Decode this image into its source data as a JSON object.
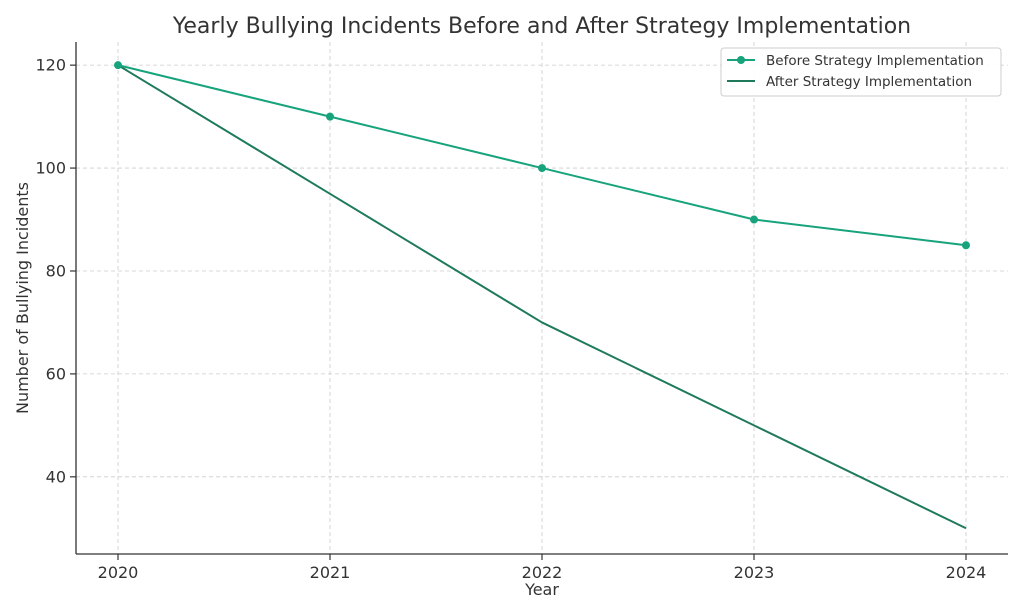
{
  "chart_data": {
    "type": "line",
    "title": "Yearly Bullying Incidents Before and After Strategy Implementation",
    "xlabel": "Year",
    "ylabel": "Number of Bullying Incidents",
    "x": [
      "2020",
      "2021",
      "2022",
      "2023",
      "2024"
    ],
    "yticks": [
      40,
      60,
      80,
      100,
      120
    ],
    "ylim": [
      25,
      124.5
    ],
    "grid": true,
    "legend_position": "top-right",
    "series": [
      {
        "name": "Before Strategy Implementation",
        "values": [
          120,
          110,
          100,
          90,
          85
        ],
        "color": "#17a37c",
        "markers": true
      },
      {
        "name": "After Strategy Implementation",
        "values": [
          120,
          95,
          70,
          50,
          30
        ],
        "color": "#1f7a5c",
        "markers": false
      }
    ]
  }
}
